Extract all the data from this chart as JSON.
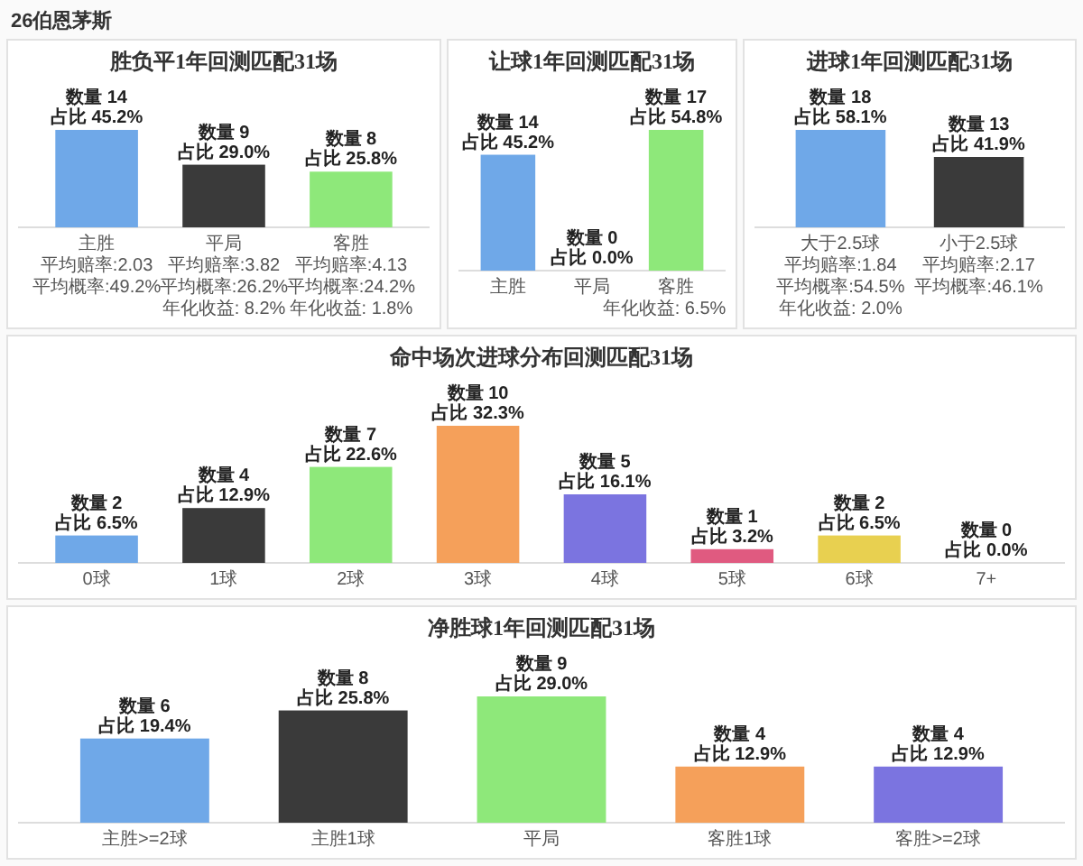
{
  "chart_data": [
    {
      "type": "other",
      "title": "26伯恩茅斯"
    },
    {
      "type": "bar",
      "title": "胜负平1年回测匹配31场",
      "categories": [
        "主胜",
        "平局",
        "客胜"
      ],
      "values": [
        14,
        9,
        8
      ],
      "colors": [
        "#6fa8e8",
        "#3a3a3a",
        "#8ee87a"
      ],
      "value_labels": [
        "数量 14\n占比 45.2%",
        "数量 9\n占比 29.0%",
        "数量 8\n占比 25.8%"
      ],
      "annotations": [
        "平均赔率:2.03\n平均概率:49.2%",
        "平均赔率:3.82\n平均概率:26.2%\n年化收益: 8.2%",
        "平均赔率:4.13\n平均概率:24.2%\n年化收益: 1.8%"
      ]
    },
    {
      "type": "bar",
      "title": "让球1年回测匹配31场",
      "categories": [
        "主胜",
        "平局",
        "客胜"
      ],
      "values": [
        14,
        0,
        17
      ],
      "colors": [
        "#6fa8e8",
        "#3a3a3a",
        "#8ee87a"
      ],
      "value_labels": [
        "数量 14\n占比 45.2%",
        "数量 0\n占比 0.0%",
        "数量 17\n占比 54.8%"
      ],
      "annotations": [
        "年化收益: 6.5%"
      ]
    },
    {
      "type": "bar",
      "title": "进球1年回测匹配31场",
      "categories": [
        "大于2.5球",
        "小于2.5球"
      ],
      "values": [
        18,
        13
      ],
      "colors": [
        "#6fa8e8",
        "#3a3a3a"
      ],
      "value_labels": [
        "数量 18\n占比 58.1%",
        "数量 13\n占比 41.9%"
      ],
      "annotations": [
        "平均赔率:1.84\n平均概率:54.5%\n年化收益: 2.0%",
        "平均赔率:2.17\n平均概率:46.1%"
      ]
    },
    {
      "type": "bar",
      "title": "命中场次进球分布回测匹配31场",
      "categories": [
        "0球",
        "1球",
        "2球",
        "3球",
        "4球",
        "5球",
        "6球",
        "7+"
      ],
      "values": [
        2,
        4,
        7,
        10,
        5,
        1,
        2,
        0
      ],
      "colors": [
        "#6fa8e8",
        "#3a3a3a",
        "#8ee87a",
        "#f5a05a",
        "#7b74e0",
        "#e05a80",
        "#e8d050",
        "#cccccc"
      ],
      "value_labels": [
        "数量 2\n占比 6.5%",
        "数量 4\n占比 12.9%",
        "数量 7\n占比 22.6%",
        "数量 10\n占比 32.3%",
        "数量 5\n占比 16.1%",
        "数量 1\n占比 3.2%",
        "数量 2\n占比 6.5%",
        "数量 0\n占比 0.0%"
      ]
    },
    {
      "type": "bar",
      "title": "净胜球1年回测匹配31场",
      "categories": [
        "主胜>=2球",
        "主胜1球",
        "平局",
        "客胜1球",
        "客胜>=2球"
      ],
      "values": [
        6,
        8,
        9,
        4,
        4
      ],
      "colors": [
        "#6fa8e8",
        "#3a3a3a",
        "#8ee87a",
        "#f5a05a",
        "#7b74e0"
      ],
      "value_labels": [
        "数量 6\n占比 19.4%",
        "数量 8\n占比 25.8%",
        "数量 9\n占比 29.0%",
        "数量 4\n占比 12.9%",
        "数量 4\n占比 12.9%"
      ]
    }
  ]
}
